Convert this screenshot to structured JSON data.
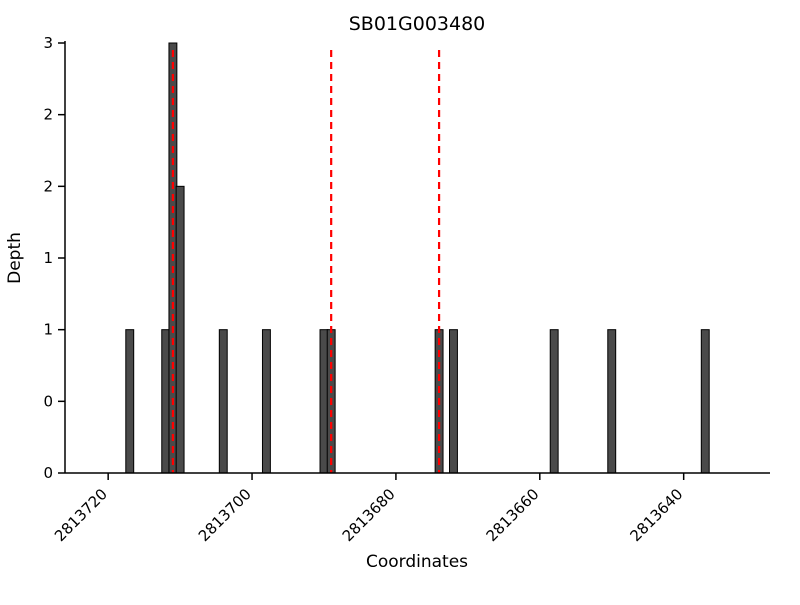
{
  "chart_data": {
    "type": "bar",
    "title": "SB01G003480",
    "xlabel": "Coordinates",
    "ylabel": "Depth",
    "x_axis_reversed": true,
    "xlim": [
      2813726,
      2813628
    ],
    "ylim": [
      0,
      3
    ],
    "grid": false,
    "legend": "none",
    "x_ticks": [
      {
        "value": 2813720,
        "label": "2813720"
      },
      {
        "value": 2813700,
        "label": "2813700"
      },
      {
        "value": 2813680,
        "label": "2813680"
      },
      {
        "value": 2813660,
        "label": "2813660"
      },
      {
        "value": 2813640,
        "label": "2813640"
      }
    ],
    "y_ticks": [
      {
        "value": 0,
        "label": "0"
      },
      {
        "value": 0.5,
        "label": "0"
      },
      {
        "value": 1,
        "label": "1"
      },
      {
        "value": 1.5,
        "label": "1"
      },
      {
        "value": 2,
        "label": "2"
      },
      {
        "value": 2.5,
        "label": "2"
      },
      {
        "value": 3,
        "label": "3"
      }
    ],
    "bar_width": 1.1,
    "bars": [
      {
        "coordinate": 2813717,
        "depth": 1
      },
      {
        "coordinate": 2813712,
        "depth": 1
      },
      {
        "coordinate": 2813711,
        "depth": 3
      },
      {
        "coordinate": 2813710,
        "depth": 2
      },
      {
        "coordinate": 2813704,
        "depth": 1
      },
      {
        "coordinate": 2813698,
        "depth": 1
      },
      {
        "coordinate": 2813690,
        "depth": 1
      },
      {
        "coordinate": 2813689,
        "depth": 1
      },
      {
        "coordinate": 2813674,
        "depth": 1
      },
      {
        "coordinate": 2813672,
        "depth": 1
      },
      {
        "coordinate": 2813658,
        "depth": 1
      },
      {
        "coordinate": 2813650,
        "depth": 1
      },
      {
        "coordinate": 2813637,
        "depth": 1
      }
    ],
    "vlines": [
      2813711,
      2813689,
      2813674
    ],
    "colors": {
      "bar_fill": "#4a4a4a",
      "bar_edge": "#000000",
      "vline": "#ff0000",
      "axis": "#000000"
    }
  }
}
